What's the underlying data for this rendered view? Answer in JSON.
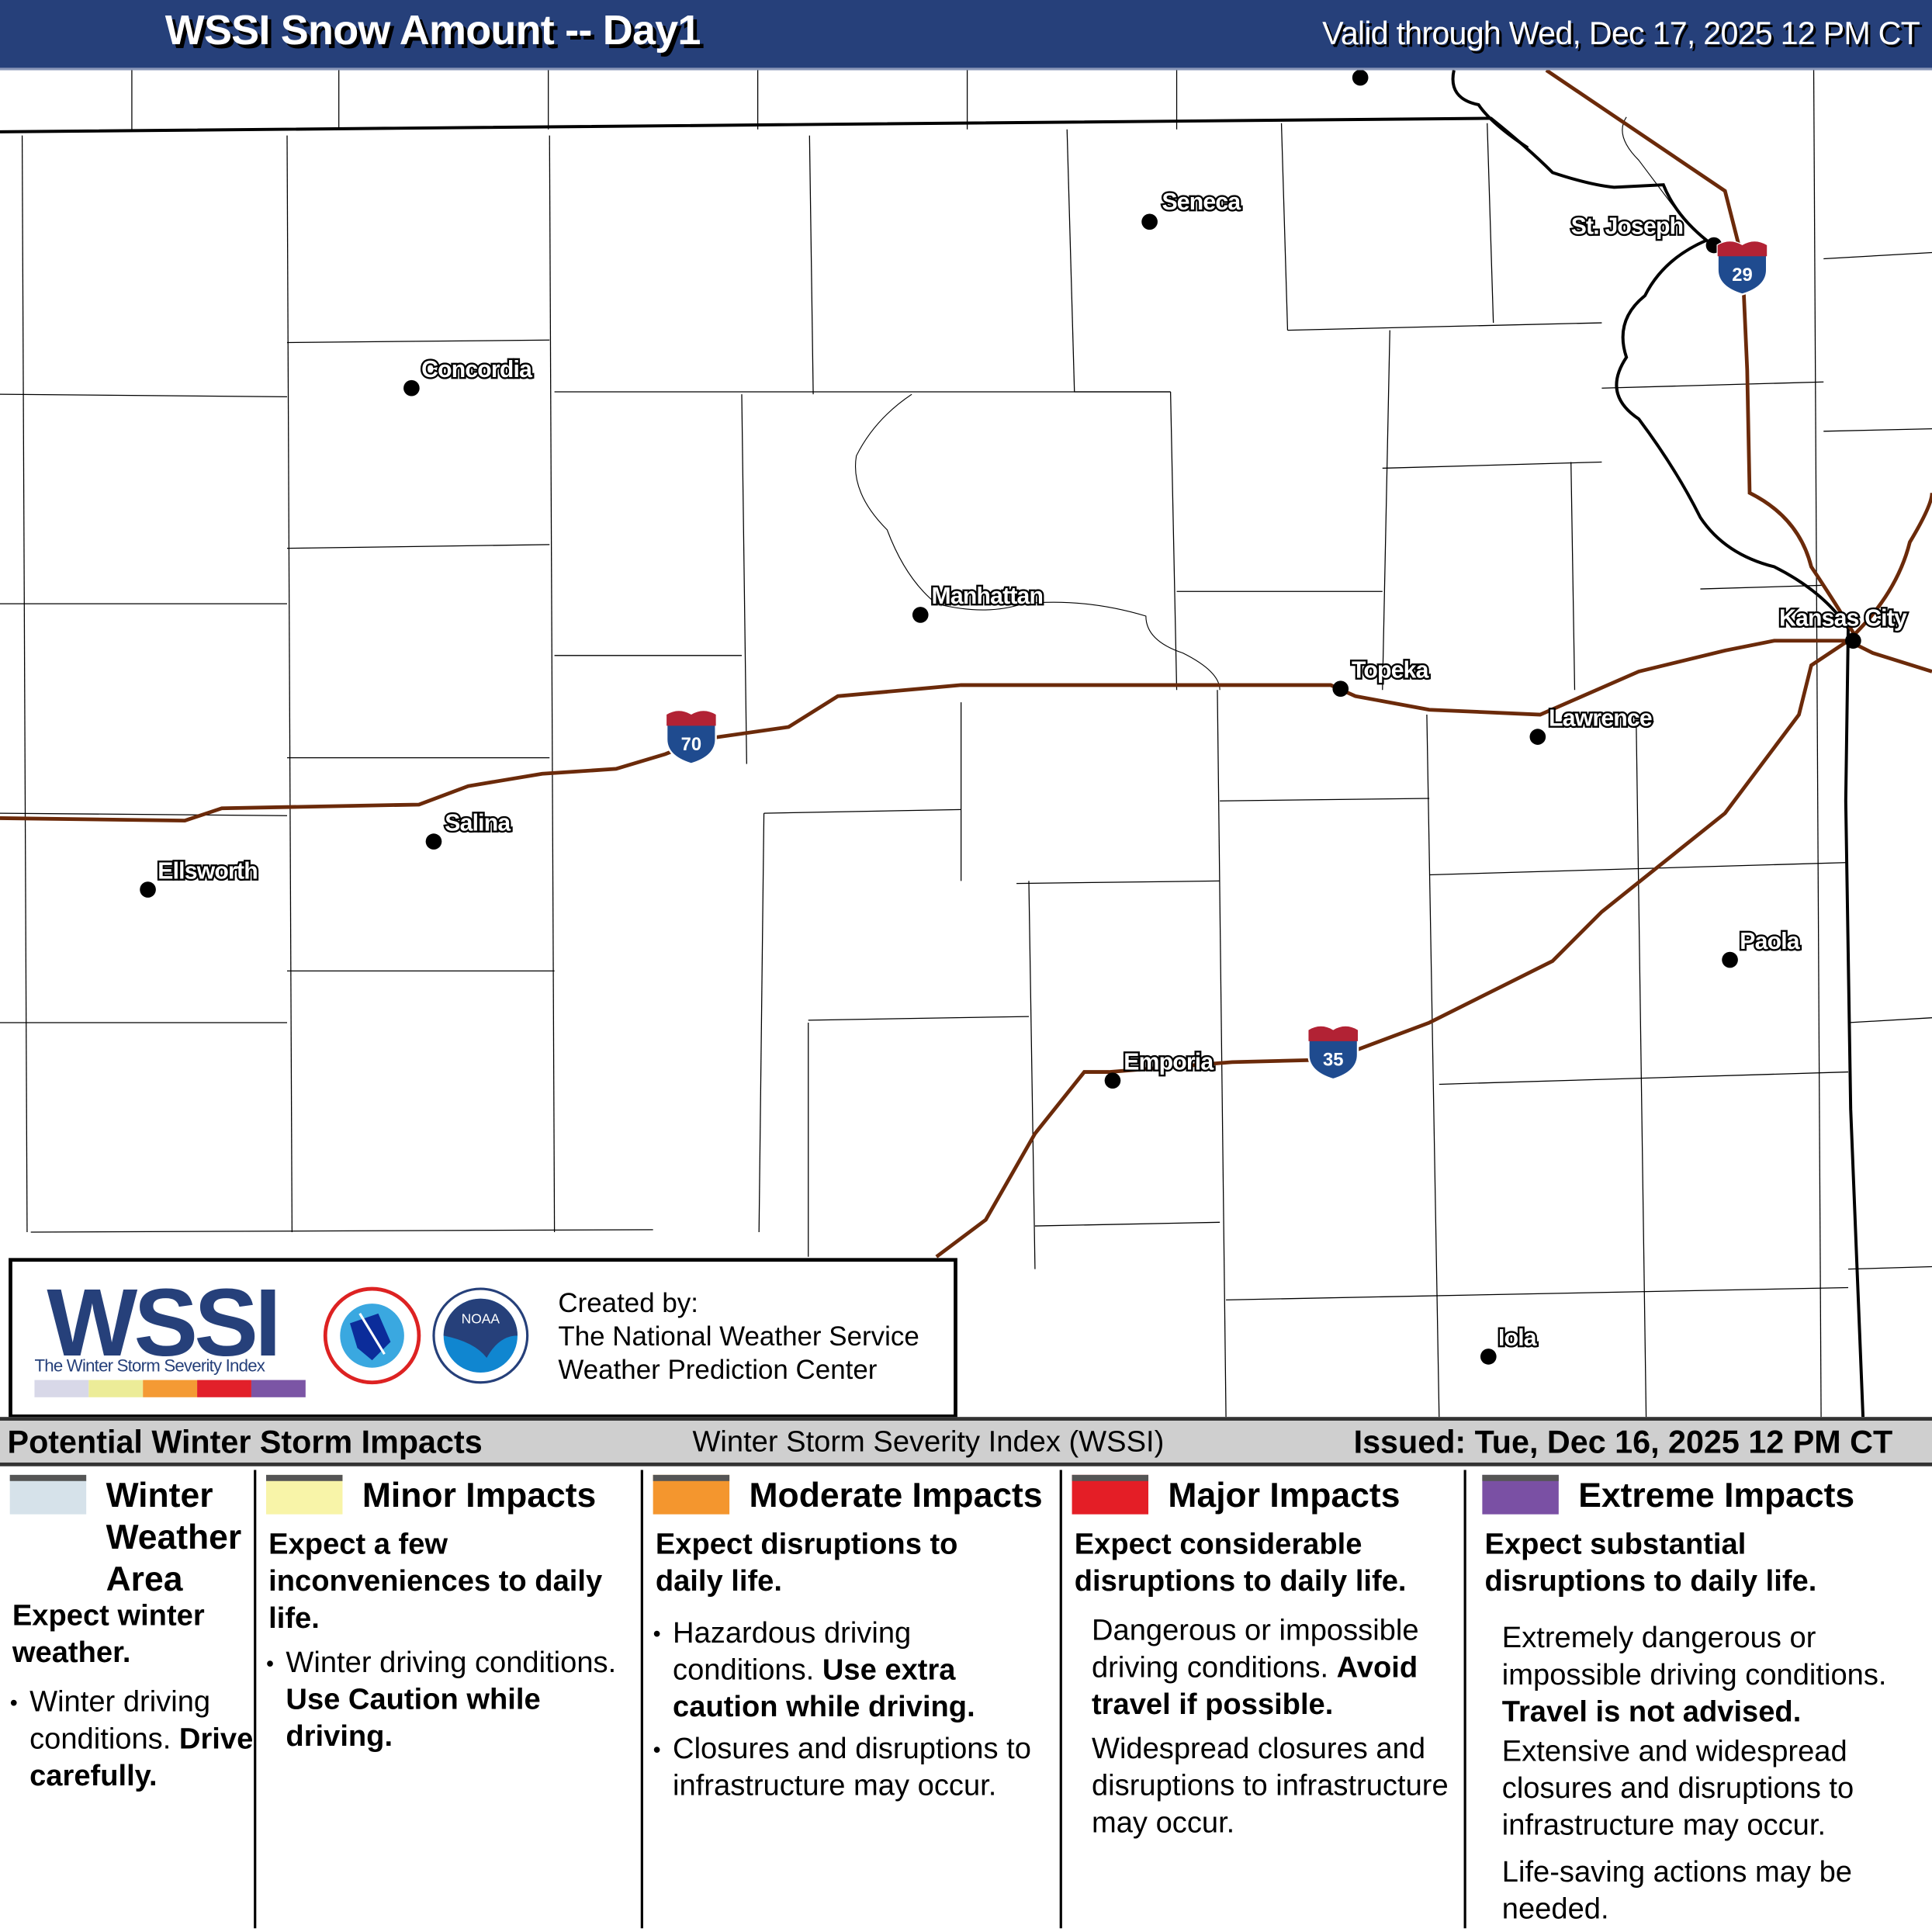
{
  "header": {
    "title": "WSSI Snow Amount -- Day1",
    "valid": "Valid through Wed, Dec 17, 2025 12 PM CT"
  },
  "map": {
    "cities": [
      "Seneca",
      "St. Joseph",
      "Concordia",
      "Manhattan",
      "Kansas City",
      "Topeka",
      "Lawrence",
      "Salina",
      "Ellsworth",
      "Paola",
      "Emporia",
      "Iola"
    ],
    "interstates": [
      "70",
      "29",
      "35"
    ],
    "colors": {
      "interstate": "#6b2a0a",
      "shield_blue": "#1f4b8f",
      "shield_red": "#b22234"
    }
  },
  "logo": {
    "wordmark": "WSSI",
    "tagline": "The Winter Storm Severity Index",
    "created_by": "Created by:",
    "org1": "The National Weather Service",
    "org2": "Weather Prediction Center",
    "scale_colors": [
      "#d8d8e8",
      "#ecec98",
      "#f49a34",
      "#e2202a",
      "#7b55a5"
    ]
  },
  "bar": {
    "left": "Potential Winter Storm Impacts",
    "center": "Winter Storm Severity Index (WSSI)",
    "right": "Issued: Tue, Dec 16, 2025 12 PM CT"
  },
  "legend": [
    {
      "title": "Winter Weather Area",
      "color": "#d6e2ea",
      "summary": "Expect winter weather.",
      "bullet": "Winter driving conditions.",
      "bullet_bold": "Drive carefully."
    },
    {
      "title": "Minor Impacts",
      "color": "#f8f4a8",
      "summary": "Expect a few inconveniences to daily life.",
      "bullet": "Winter driving conditions.",
      "bullet_bold": "Use Caution while driving."
    },
    {
      "title": "Moderate Impacts",
      "color": "#f4962e",
      "summary": "Expect disruptions to daily life.",
      "bullet": "Hazardous driving conditions.",
      "bullet_bold": "Use extra caution while driving.",
      "bullet2": "Closures and disruptions to infrastructure may occur."
    },
    {
      "title": "Major Impacts",
      "color": "#e41e26",
      "summary": "Expect considerable disruptions to daily life.",
      "bullet": "Dangerous or impossible driving conditions.",
      "bullet_bold": "Avoid travel if possible.",
      "bullet2": "Widespread closures and disruptions to infrastructure may occur."
    },
    {
      "title": "Extreme Impacts",
      "color": "#7a50a4",
      "summary": "Expect substantial disruptions to daily life.",
      "bullet": "Extremely dangerous or impossible driving conditions.",
      "bullet_bold": "Travel is not advised.",
      "bullet2": "Extensive and widespread closures and disruptions to infrastructure may occur.",
      "bullet3": "Life-saving actions may be needed."
    }
  ]
}
